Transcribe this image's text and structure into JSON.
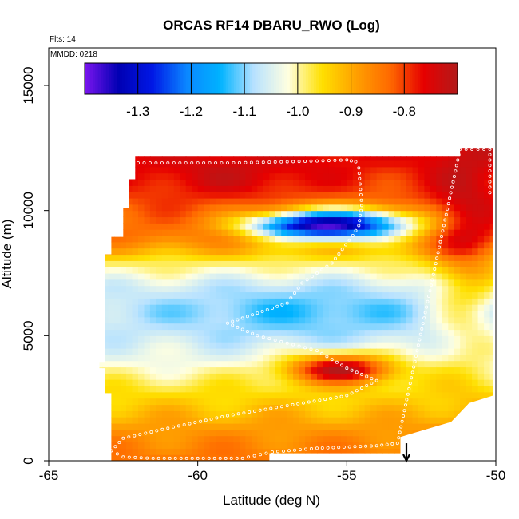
{
  "chart_data": {
    "type": "heatmap",
    "title": "ORCAS RF14 DBARU_RWO (Log)",
    "subtitle_flts": "Flts: 14",
    "subtitle_mmdd": "MMDD: 0218",
    "xlabel": "Latitude (deg N)",
    "ylabel": "Altitude (m)",
    "xlim": [
      -65,
      -50
    ],
    "ylim": [
      0,
      16500
    ],
    "xticks": [
      -65,
      -60,
      -55,
      -50
    ],
    "yticks": [
      0,
      5000,
      10000,
      15000
    ],
    "grid": false,
    "colorbar": {
      "min": -1.4,
      "max": -0.7,
      "ticks": [
        -1.3,
        -1.2,
        -1.1,
        -1.0,
        -0.9,
        -0.8
      ],
      "placement": "top-inside",
      "stops": [
        "#7b15ef",
        "#0000b3",
        "#0018e6",
        "#0b86ff",
        "#00b3ff",
        "#b8e2ff",
        "#ffffe0",
        "#ffe000",
        "#ffa000",
        "#ff6a00",
        "#e60000",
        "#b31a1a"
      ]
    },
    "data_hull": [
      [
        -62.7,
        0
      ],
      [
        -57.6,
        0
      ],
      [
        -57.6,
        300
      ],
      [
        -53.2,
        300
      ],
      [
        -53.2,
        950
      ],
      [
        -51.5,
        1550
      ],
      [
        -50.9,
        2300
      ],
      [
        -50.1,
        2600
      ],
      [
        -50.1,
        12500
      ],
      [
        -51.2,
        12500
      ],
      [
        -51.2,
        12150
      ],
      [
        -62.1,
        12150
      ],
      [
        -62.1,
        11250
      ],
      [
        -62.3,
        11250
      ],
      [
        -62.3,
        10100
      ],
      [
        -62.5,
        10100
      ],
      [
        -62.5,
        8950
      ],
      [
        -62.9,
        8950
      ],
      [
        -62.9,
        8250
      ],
      [
        -63.1,
        8250
      ],
      [
        -63.1,
        6500
      ],
      [
        -63.1,
        3950
      ],
      [
        -63.3,
        3950
      ],
      [
        -63.3,
        3700
      ],
      [
        -63.1,
        3700
      ],
      [
        -63.1,
        2700
      ],
      [
        -62.9,
        2700
      ],
      [
        -62.9,
        0
      ]
    ],
    "field_model": {
      "base": [
        {
          "alt": 0,
          "value": -0.84
        },
        {
          "alt": 1000,
          "value": -0.87
        },
        {
          "alt": 2000,
          "value": -0.92
        },
        {
          "alt": 3000,
          "value": -0.97
        },
        {
          "alt": 4000,
          "value": -1.03
        },
        {
          "alt": 5000,
          "value": -1.06
        },
        {
          "alt": 6000,
          "value": -1.08
        },
        {
          "alt": 7000,
          "value": -1.05
        },
        {
          "alt": 8000,
          "value": -0.97
        },
        {
          "alt": 8500,
          "value": -0.89
        },
        {
          "alt": 9000,
          "value": -0.84
        },
        {
          "alt": 10000,
          "value": -0.82
        },
        {
          "alt": 11000,
          "value": -0.8
        },
        {
          "alt": 12000,
          "value": -0.77
        },
        {
          "alt": 12500,
          "value": -0.76
        }
      ],
      "features": [
        {
          "lat": -55.2,
          "alt": 9450,
          "lat_radius": 2.6,
          "alt_radius": 650,
          "delta": -0.45
        },
        {
          "lat": -56.8,
          "alt": 9400,
          "lat_radius": 2.0,
          "alt_radius": 450,
          "delta": -0.15
        },
        {
          "lat": -55.2,
          "alt": 3700,
          "lat_radius": 1.8,
          "alt_radius": 600,
          "delta": 0.3
        },
        {
          "lat": -56.5,
          "alt": 6000,
          "lat_radius": 4.0,
          "alt_radius": 1300,
          "delta": -0.05
        },
        {
          "lat": -51.0,
          "alt": 8000,
          "lat_radius": 1.2,
          "alt_radius": 4000,
          "delta": 0.12
        },
        {
          "lat": -59.0,
          "alt": 11300,
          "lat_radius": 3.0,
          "alt_radius": 900,
          "delta": 0.05
        }
      ]
    },
    "flight_track": [
      [
        -62.2,
        11900
      ],
      [
        -61.0,
        11900
      ],
      [
        -60.0,
        11900
      ],
      [
        -59.0,
        11900
      ],
      [
        -58.0,
        11920
      ],
      [
        -57.0,
        11950
      ],
      [
        -56.0,
        11980
      ],
      [
        -55.0,
        12020
      ],
      [
        -54.7,
        11950
      ],
      [
        -54.6,
        11700
      ],
      [
        -54.5,
        10200
      ],
      [
        -54.6,
        9400
      ],
      [
        -54.8,
        9000
      ],
      [
        -55.5,
        7900
      ],
      [
        -56.5,
        7100
      ],
      [
        -57.0,
        6300
      ],
      [
        -58.0,
        5900
      ],
      [
        -59.0,
        5500
      ],
      [
        -58.0,
        5000
      ],
      [
        -57.0,
        4700
      ],
      [
        -56.0,
        4400
      ],
      [
        -55.0,
        3700
      ],
      [
        -54.0,
        3200
      ],
      [
        -55.0,
        2600
      ],
      [
        -57.0,
        2200
      ],
      [
        -59.0,
        1800
      ],
      [
        -61.0,
        1300
      ],
      [
        -62.5,
        900
      ],
      [
        -62.9,
        400
      ],
      [
        -62.5,
        150
      ],
      [
        -61.5,
        100
      ],
      [
        -60.0,
        100
      ],
      [
        -58.5,
        100
      ],
      [
        -57.5,
        350
      ],
      [
        -56.0,
        500
      ],
      [
        -54.0,
        600
      ],
      [
        -53.3,
        700
      ],
      [
        -51.2,
        12450
      ],
      [
        -50.2,
        12450
      ],
      [
        -50.2,
        10500
      ]
    ],
    "arrow": {
      "lat": -53.0,
      "alt_from": 700,
      "alt_to": 0,
      "label": "↓"
    }
  }
}
